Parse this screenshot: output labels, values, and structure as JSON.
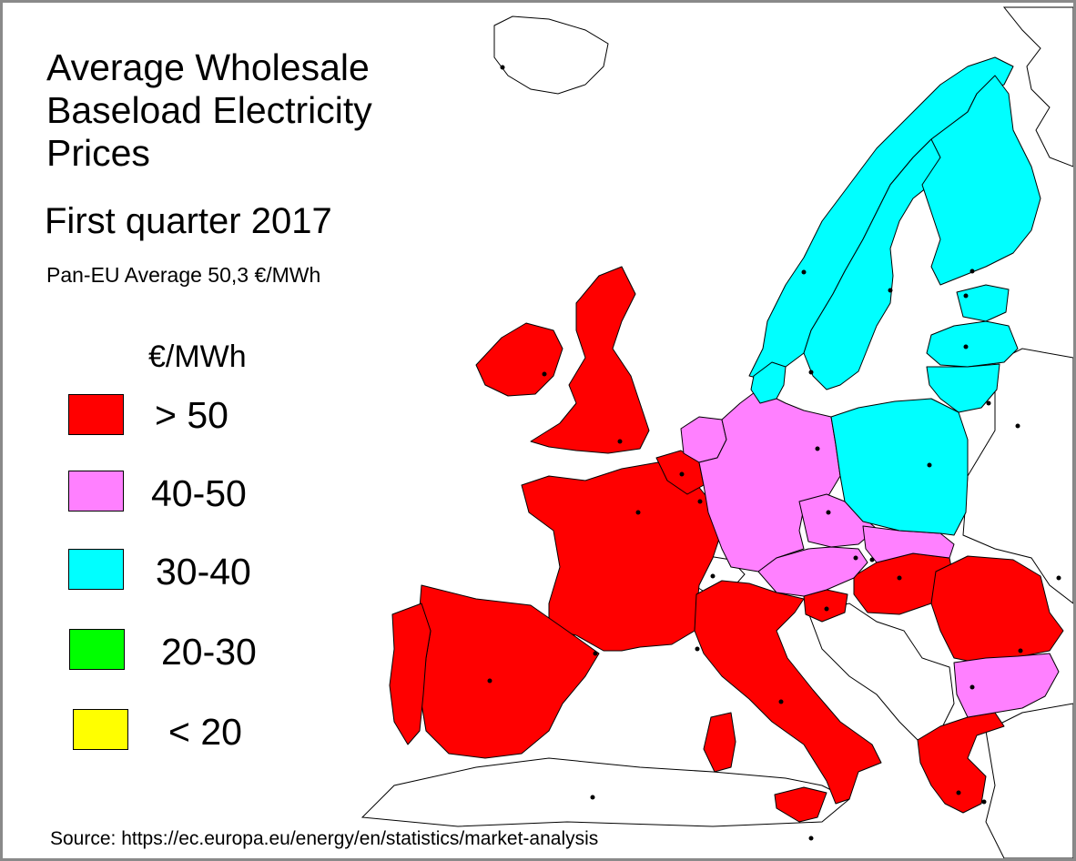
{
  "title_lines": [
    "Average Wholesale",
    "Baseload Electricity",
    "Prices"
  ],
  "subtitle": "First quarter 2017",
  "average_text": "Pan-EU Average 50,3 €/MWh",
  "legend": {
    "unit": "€/MWh",
    "classes": [
      {
        "label": "> 50",
        "color": "#ff0000"
      },
      {
        "label": "40-50",
        "color": "#ff80ff"
      },
      {
        "label": "30-40",
        "color": "#00ffff"
      },
      {
        "label": "20-30",
        "color": "#00ff00"
      },
      {
        "label": "< 20",
        "color": "#ffff00"
      }
    ]
  },
  "source": "Source: https://ec.europa.eu/energy/en/statistics/market-analysis",
  "colors": {
    "background": "#ffffff",
    "no_data": "#ffffff",
    "border": "#000000"
  },
  "countries_by_class": {
    "> 50": [
      "Ireland",
      "United Kingdom",
      "France",
      "Belgium",
      "Spain",
      "Portugal",
      "Italy",
      "Slovenia",
      "Hungary",
      "Romania",
      "Greece"
    ],
    "40-50": [
      "Netherlands",
      "Germany",
      "Czech Republic",
      "Austria",
      "Slovakia",
      "Bulgaria"
    ],
    "30-40": [
      "Norway",
      "Sweden",
      "Finland",
      "Denmark",
      "Estonia",
      "Latvia",
      "Lithuania",
      "Poland"
    ]
  }
}
